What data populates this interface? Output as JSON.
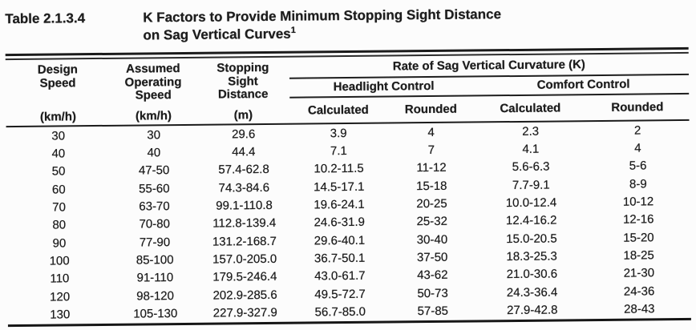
{
  "caption": {
    "label": "Table 2.1.3.4",
    "title_line1": "K Factors to Provide Minimum Stopping Sight Distance",
    "title_line2": "on Sag Vertical Curves",
    "footnote_marker": "1"
  },
  "table": {
    "group_header": "Rate of Sag Vertical Curvature (K)",
    "subgroups": [
      "Headlight Control",
      "Comfort Control"
    ],
    "left_columns": [
      {
        "title": "Design\nSpeed",
        "unit": "(km/h)"
      },
      {
        "title": "Assumed\nOperating\nSpeed",
        "unit": "(km/h)"
      },
      {
        "title": "Stopping\nSight\nDistance",
        "unit": "(m)"
      }
    ],
    "leaf_headers": [
      "Calculated",
      "Rounded",
      "Calculated",
      "Rounded"
    ],
    "rows": [
      [
        "30",
        "30",
        "29.6",
        "3.9",
        "4",
        "2.3",
        "2"
      ],
      [
        "40",
        "40",
        "44.4",
        "7.1",
        "7",
        "4.1",
        "4"
      ],
      [
        "50",
        "47-50",
        "57.4-62.8",
        "10.2-11.5",
        "11-12",
        "5.6-6.3",
        "5-6"
      ],
      [
        "60",
        "55-60",
        "74.3-84.6",
        "14.5-17.1",
        "15-18",
        "7.7-9.1",
        "8-9"
      ],
      [
        "70",
        "63-70",
        "99.1-110.8",
        "19.6-24.1",
        "20-25",
        "10.0-12.4",
        "10-12"
      ],
      [
        "80",
        "70-80",
        "112.8-139.4",
        "24.6-31.9",
        "25-32",
        "12.4-16.2",
        "12-16"
      ],
      [
        "90",
        "77-90",
        "131.2-168.7",
        "29.6-40.1",
        "30-40",
        "15.0-20.5",
        "15-20"
      ],
      [
        "100",
        "85-100",
        "157.0-205.0",
        "36.7-50.1",
        "37-50",
        "18.3-25.3",
        "18-25"
      ],
      [
        "110",
        "91-110",
        "179.5-246.4",
        "43.0-61.7",
        "43-62",
        "21.0-30.6",
        "21-30"
      ],
      [
        "120",
        "98-120",
        "202.9-285.6",
        "49.5-72.7",
        "50-73",
        "24.3-36.4",
        "24-36"
      ],
      [
        "130",
        "105-130",
        "227.9-327.9",
        "56.7-85.0",
        "57-85",
        "27.9-42.8",
        "28-43"
      ]
    ]
  },
  "colors": {
    "text": "#1d1d1d",
    "rule": "#1b1b1b",
    "background": "#fcfcfc"
  }
}
